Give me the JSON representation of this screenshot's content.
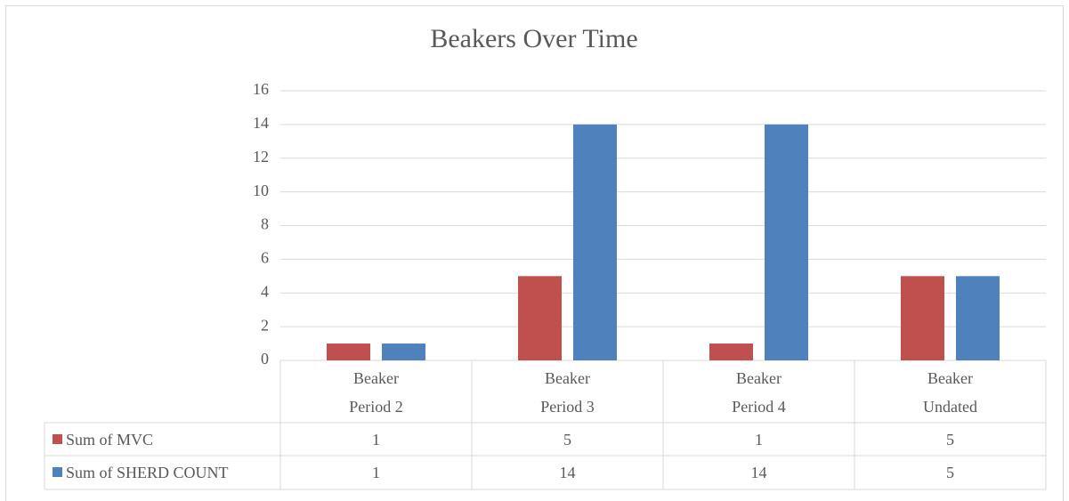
{
  "chart_data": {
    "type": "bar",
    "title": "Beakers Over Time",
    "categories": [
      "Beaker Period 2",
      "Beaker Period 3",
      "Beaker Period 4",
      "Beaker Undated"
    ],
    "series": [
      {
        "name": "Sum of MVC",
        "color": "#c0504d",
        "values": [
          1,
          5,
          1,
          5
        ]
      },
      {
        "name": "Sum of SHERD COUNT",
        "color": "#4f81bd",
        "values": [
          1,
          14,
          14,
          5
        ]
      }
    ],
    "ylim": [
      0,
      16
    ],
    "yticks": [
      0,
      2,
      4,
      6,
      8,
      10,
      12,
      14,
      16
    ],
    "grid": true,
    "data_table": true
  }
}
